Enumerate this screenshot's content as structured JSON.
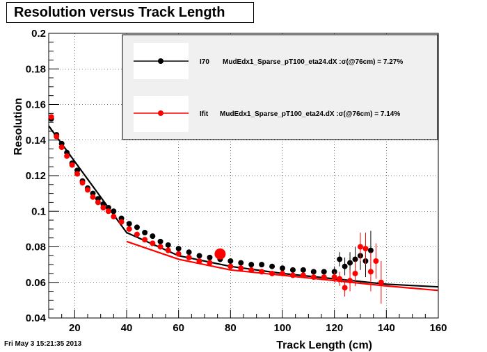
{
  "title": "Resolution versus Track Length",
  "timestamp": "Fri May  3 15:21:35 2013",
  "colors": {
    "black_series": "#000000",
    "red_series": "#ff0000",
    "legend_bg": "#f0f0f0"
  },
  "chart_data": {
    "type": "scatter",
    "title": "Resolution versus Track Length",
    "xlabel": "Track Length (cm)",
    "ylabel": "Resolution",
    "xlim": [
      10,
      160
    ],
    "ylim": [
      0.04,
      0.2
    ],
    "xticks": [
      20,
      40,
      60,
      80,
      100,
      120,
      140,
      160
    ],
    "yticks": [
      0.04,
      0.06,
      0.08,
      0.1,
      0.12,
      0.14,
      0.16,
      0.18,
      0.2
    ],
    "ytick_labels": [
      "0.04",
      "0.06",
      "0.08",
      "0.1",
      "0.12",
      "0.14",
      "0.16",
      "0.18",
      "0.2"
    ],
    "grid": true,
    "legend": [
      {
        "label": "I70",
        "text": "MudEdx1_Sparse_pT100_eta24.dX :σ(@76cm) =  7.27%",
        "color": "#000000"
      },
      {
        "label": "Ifit",
        "text": "MudEdx1_Sparse_pT100_eta24.dX :σ(@76cm) =  7.14%",
        "color": "#ff0000"
      }
    ],
    "series": [
      {
        "name": "I70",
        "color": "#000000",
        "x": [
          11,
          13,
          15,
          17,
          19,
          21,
          23,
          25,
          27,
          29,
          31,
          33,
          35,
          38,
          41,
          44,
          47,
          50,
          53,
          56,
          60,
          64,
          68,
          72,
          76,
          80,
          84,
          88,
          92,
          96,
          100,
          104,
          108,
          112,
          116,
          120,
          122,
          124,
          126,
          128,
          130,
          132,
          134
        ],
        "y": [
          0.152,
          0.143,
          0.138,
          0.133,
          0.127,
          0.123,
          0.117,
          0.113,
          0.11,
          0.107,
          0.104,
          0.102,
          0.1,
          0.096,
          0.093,
          0.091,
          0.088,
          0.086,
          0.083,
          0.081,
          0.079,
          0.077,
          0.075,
          0.074,
          0.073,
          0.072,
          0.071,
          0.07,
          0.07,
          0.069,
          0.068,
          0.067,
          0.067,
          0.066,
          0.066,
          0.066,
          0.073,
          0.069,
          0.071,
          0.073,
          0.075,
          0.072,
          0.078
        ],
        "err": [
          0,
          0,
          0,
          0,
          0,
          0,
          0,
          0,
          0,
          0,
          0,
          0,
          0,
          0,
          0,
          0,
          0,
          0,
          0,
          0,
          0,
          0,
          0,
          0,
          0,
          0,
          0,
          0,
          0,
          0,
          0,
          0,
          0,
          0,
          0,
          0.003,
          0.004,
          0.005,
          0.006,
          0.007,
          0.008,
          0.009,
          0.011
        ],
        "fit": {
          "x": [
            10,
            40,
            60,
            80,
            100,
            120,
            140,
            160
          ],
          "y": [
            0.148,
            0.088,
            0.075,
            0.069,
            0.065,
            0.062,
            0.059,
            0.0575
          ]
        }
      },
      {
        "name": "Ifit",
        "color": "#ff0000",
        "x": [
          11,
          13,
          15,
          17,
          19,
          21,
          23,
          25,
          27,
          29,
          31,
          33,
          35,
          38,
          41,
          44,
          47,
          50,
          53,
          56,
          60,
          64,
          68,
          72,
          76,
          80,
          84,
          88,
          92,
          96,
          100,
          104,
          108,
          112,
          116,
          120,
          122,
          124,
          126,
          128,
          130,
          132,
          134,
          136,
          138
        ],
        "y": [
          0.153,
          0.142,
          0.136,
          0.131,
          0.126,
          0.121,
          0.116,
          0.112,
          0.108,
          0.105,
          0.102,
          0.1,
          0.097,
          0.094,
          0.09,
          0.087,
          0.084,
          0.082,
          0.08,
          0.078,
          0.076,
          0.074,
          0.072,
          0.071,
          0.076,
          0.069,
          0.068,
          0.067,
          0.066,
          0.065,
          0.065,
          0.064,
          0.064,
          0.063,
          0.063,
          0.063,
          0.062,
          0.057,
          0.061,
          0.065,
          0.08,
          0.079,
          0.066,
          0.072,
          0.06
        ],
        "err": [
          0,
          0,
          0,
          0,
          0,
          0,
          0,
          0,
          0,
          0,
          0,
          0,
          0,
          0,
          0,
          0,
          0,
          0,
          0,
          0,
          0,
          0,
          0,
          0,
          0,
          0,
          0,
          0,
          0,
          0,
          0,
          0,
          0,
          0,
          0,
          0.003,
          0.004,
          0.005,
          0.006,
          0.007,
          0.008,
          0.009,
          0.011,
          0.01,
          0.012
        ],
        "fit": {
          "x": [
            40,
            60,
            80,
            100,
            120,
            140,
            160
          ],
          "y": [
            0.083,
            0.073,
            0.067,
            0.064,
            0.061,
            0.058,
            0.0555
          ]
        }
      }
    ]
  }
}
